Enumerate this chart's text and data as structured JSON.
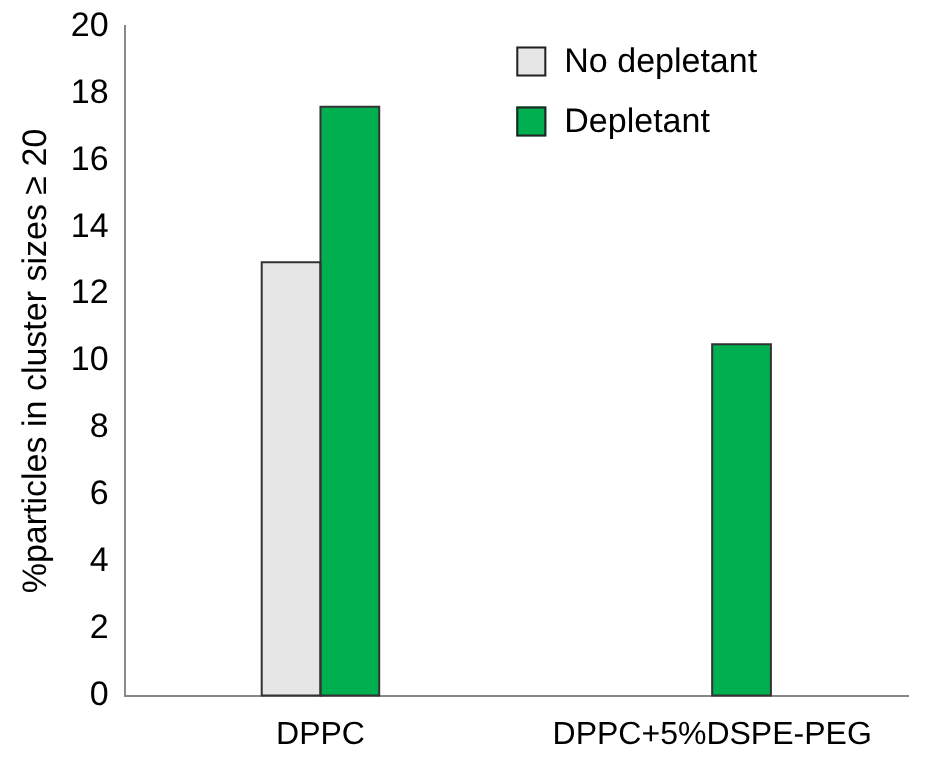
{
  "chart_data": {
    "type": "bar",
    "ylabel": "%particles in cluster sizes ≥ 20",
    "categories": [
      "DPPC",
      "DPPC+5%DSPE-PEG"
    ],
    "series": [
      {
        "name": "No depletant",
        "color": "#e7e6e6",
        "values": [
          12.95,
          null
        ]
      },
      {
        "name": "Depletant",
        "color": "#00b050",
        "values": [
          17.6,
          10.5
        ]
      }
    ],
    "ylim": [
      0,
      20
    ],
    "yticks": [
      0,
      2,
      4,
      6,
      8,
      10,
      12,
      14,
      16,
      18,
      20
    ],
    "grid": false,
    "legend": "top right"
  }
}
